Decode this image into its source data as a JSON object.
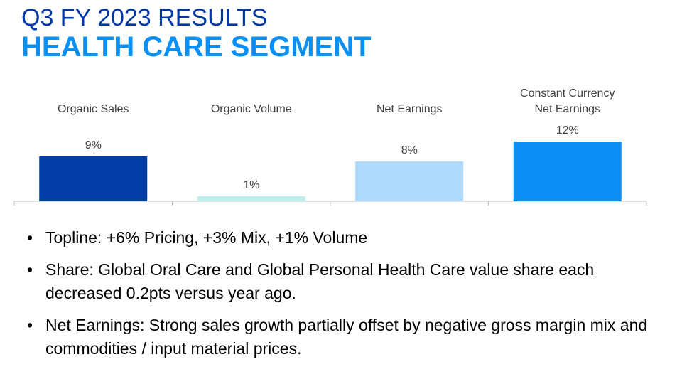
{
  "slide": {
    "title_line1": "Q3 FY 2023 RESULTS",
    "title_line2": "HEALTH CARE SEGMENT",
    "bullets": [
      "Topline: +6% Pricing, +3% Mix, +1% Volume",
      "Share: Global Oral Care and Global Personal Health Care value share each decreased 0.2pts versus year ago.",
      "Net Earnings: Strong sales growth partially offset by negative gross margin mix and commodities / input material prices."
    ]
  },
  "chart_data": {
    "type": "bar",
    "categories": [
      [
        "Organic Sales"
      ],
      [
        "Organic Volume"
      ],
      [
        "Net Earnings"
      ],
      [
        "Constant Currency",
        "Net Earnings"
      ]
    ],
    "values": [
      9,
      1,
      8,
      12
    ],
    "data_labels": [
      "9%",
      "1%",
      "8%",
      "12%"
    ],
    "unit": "%",
    "colors": [
      "#003da5",
      "#c3ecec",
      "#aed9fa",
      "#0a8ff5"
    ],
    "ylim": [
      0,
      12
    ],
    "grid": false,
    "legend": "none"
  },
  "colors": {
    "title_dark": "#0039a6",
    "title_accent": "#0a8ff5",
    "axis": "#bfbfbf",
    "text": "#404040"
  }
}
